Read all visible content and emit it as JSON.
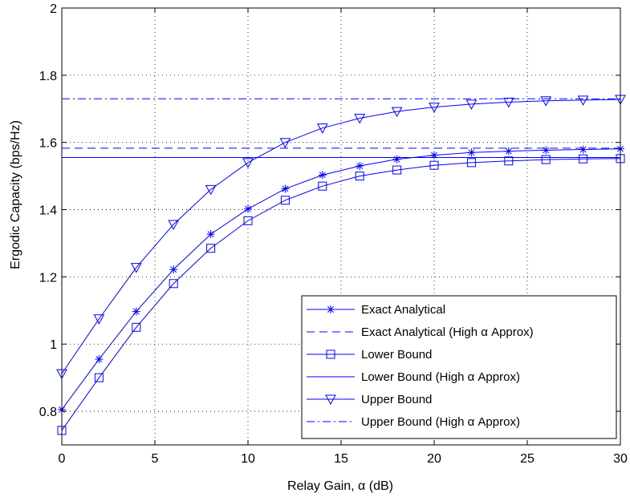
{
  "chart_data": {
    "type": "line",
    "title": "",
    "xlabel": "Relay Gain, α (dB)",
    "ylabel": "Ergodic Capacity (bps/Hz)",
    "xlim": [
      0,
      30
    ],
    "ylim": [
      0.7,
      2.0
    ],
    "xticks": [
      0,
      5,
      10,
      15,
      20,
      25,
      30
    ],
    "xtick_labels": [
      "0",
      "5",
      "10",
      "15",
      "20",
      "25",
      "30"
    ],
    "yticks": [
      0.8,
      1.0,
      1.2,
      1.4,
      1.6,
      1.8,
      2.0
    ],
    "ytick_labels": [
      "0.8",
      "1",
      "1.2",
      "1.4",
      "1.6",
      "1.8",
      "2"
    ],
    "grid": true,
    "grid_style": "dotted",
    "legend_position": "bottom-right",
    "line_color": "#0000ff",
    "series": [
      {
        "name": "Exact Analytical",
        "marker": "asterisk",
        "line": "solid",
        "x": [
          0,
          2,
          4,
          6,
          8,
          10,
          12,
          14,
          16,
          18,
          20,
          22,
          24,
          26,
          28,
          30
        ],
        "y": [
          0.805,
          0.955,
          1.097,
          1.222,
          1.327,
          1.402,
          1.462,
          1.503,
          1.53,
          1.55,
          1.562,
          1.57,
          1.574,
          1.577,
          1.579,
          1.581
        ]
      },
      {
        "name": "Exact Analytical (High α Approx)",
        "marker": "none",
        "line": "dashed",
        "x": [
          0,
          30
        ],
        "y": [
          1.583,
          1.583
        ]
      },
      {
        "name": "Lower Bound",
        "marker": "square",
        "line": "solid",
        "x": [
          0,
          2,
          4,
          6,
          8,
          10,
          12,
          14,
          16,
          18,
          20,
          22,
          24,
          26,
          28,
          30
        ],
        "y": [
          0.743,
          0.9,
          1.05,
          1.18,
          1.285,
          1.367,
          1.428,
          1.47,
          1.5,
          1.518,
          1.532,
          1.54,
          1.545,
          1.549,
          1.551,
          1.552
        ]
      },
      {
        "name": "Lower Bound (High α Approx)",
        "marker": "none",
        "line": "solid",
        "x": [
          0,
          30
        ],
        "y": [
          1.555,
          1.555
        ]
      },
      {
        "name": "Upper Bound",
        "marker": "triangle-down",
        "line": "solid",
        "x": [
          0,
          2,
          4,
          6,
          8,
          10,
          12,
          14,
          16,
          18,
          20,
          22,
          24,
          26,
          28,
          30
        ],
        "y": [
          0.912,
          1.075,
          1.228,
          1.356,
          1.46,
          1.54,
          1.6,
          1.643,
          1.672,
          1.692,
          1.705,
          1.714,
          1.72,
          1.724,
          1.726,
          1.728
        ]
      },
      {
        "name": "Upper Bound (High α Approx)",
        "marker": "none",
        "line": "dashdot",
        "x": [
          0,
          30
        ],
        "y": [
          1.73,
          1.73
        ]
      }
    ]
  }
}
